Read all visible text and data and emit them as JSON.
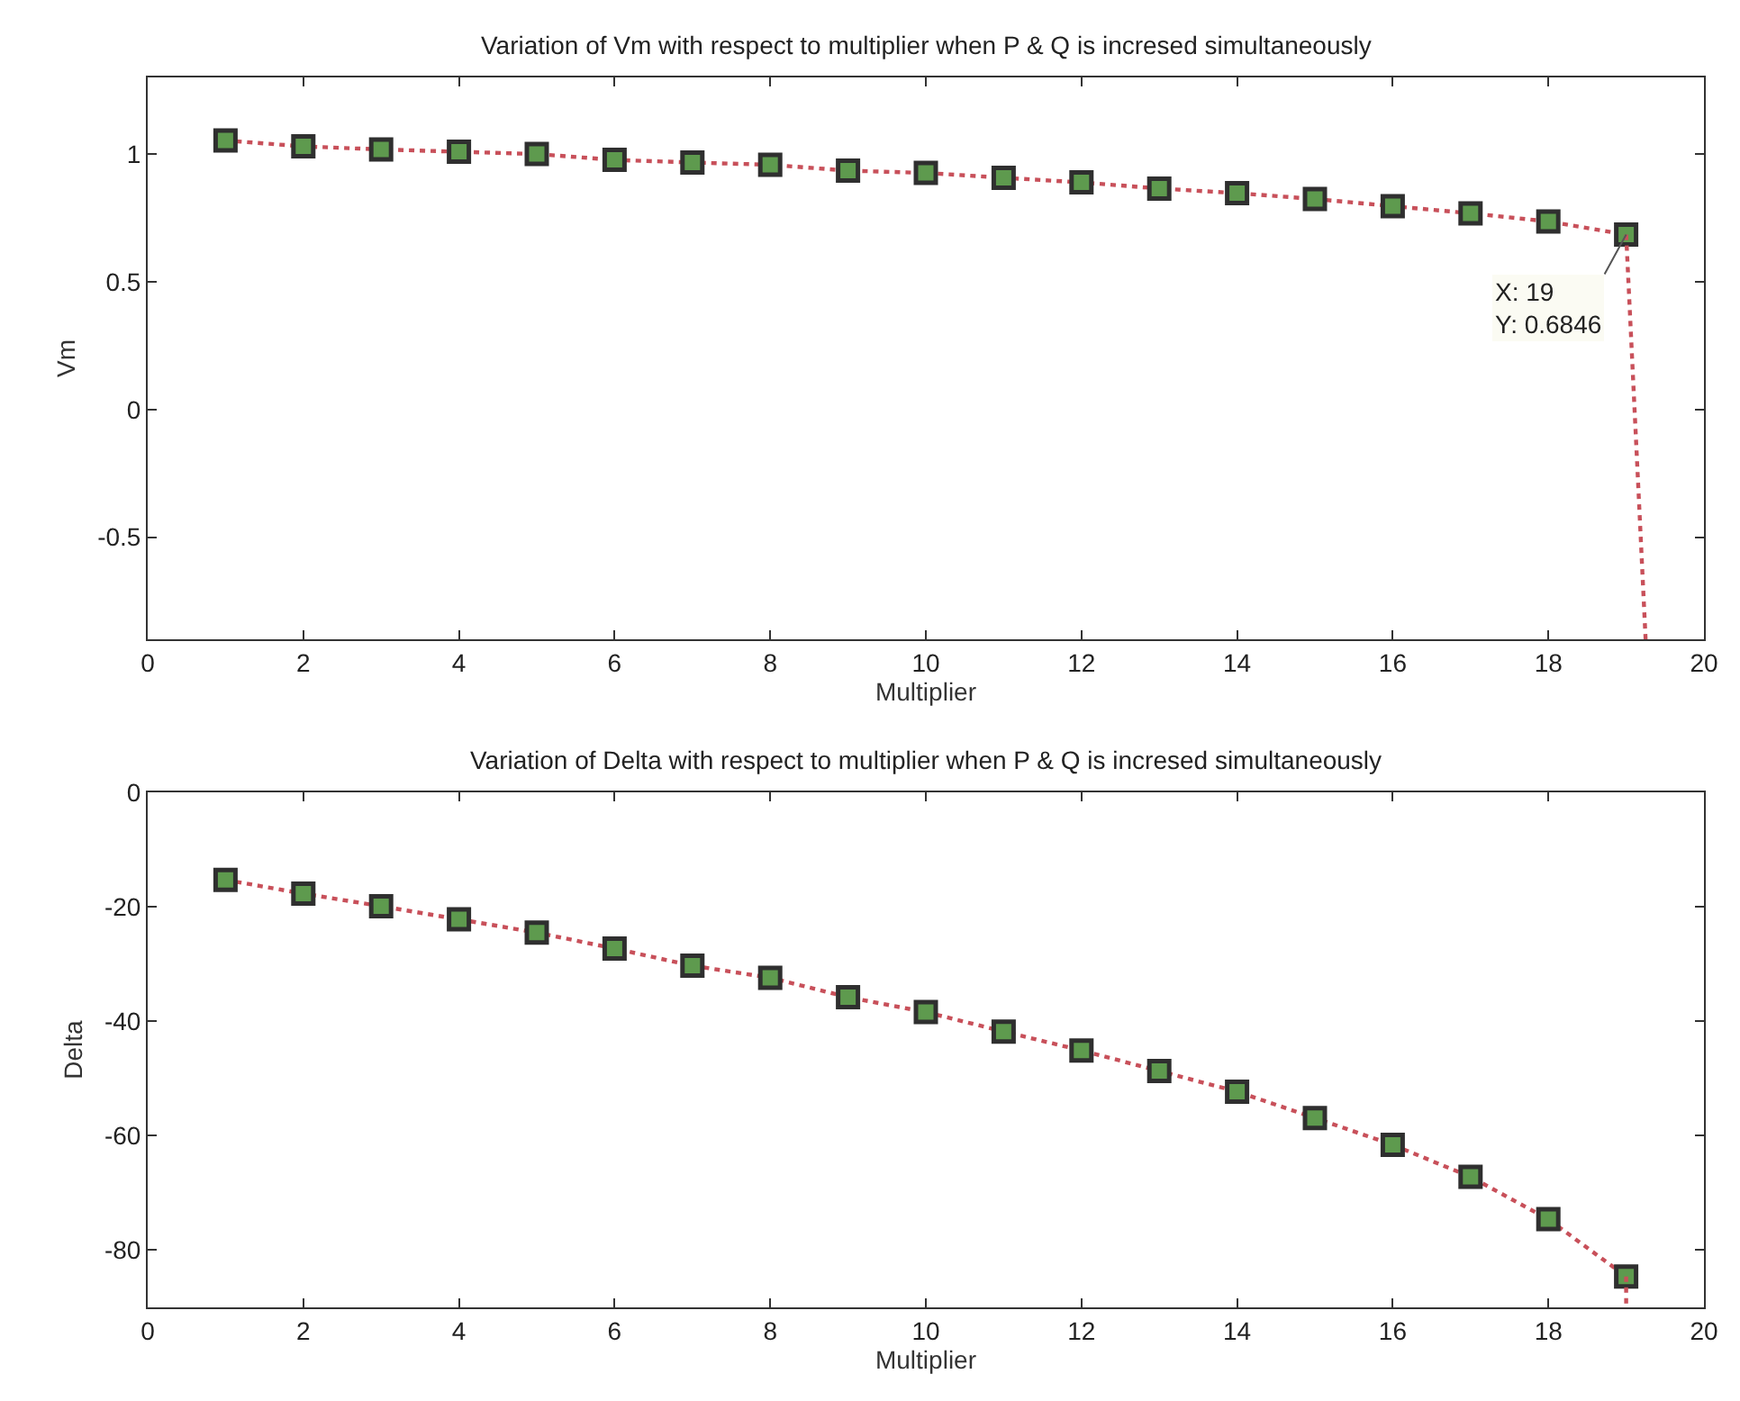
{
  "chart_data": [
    {
      "type": "line",
      "title": "Variation of Vm with respect to multiplier when P & Q is incresed simultaneously",
      "xlabel": "Multiplier",
      "ylabel": "Vm",
      "xlim": [
        0,
        20
      ],
      "xticks": [
        0,
        2,
        4,
        6,
        8,
        10,
        12,
        14,
        16,
        18,
        20
      ],
      "ylim": [
        -0.9,
        1.3
      ],
      "yticks": [
        -0.5,
        0,
        0.5,
        1
      ],
      "line_style": "dotted",
      "series": [
        {
          "color": "#c8505a",
          "marker": "square",
          "x": [
            1,
            2,
            3,
            4,
            5,
            6,
            7,
            8,
            9,
            10,
            11,
            12,
            13,
            14,
            15,
            16,
            17,
            18,
            19
          ],
          "values": [
            1.053,
            1.03,
            1.018,
            1.009,
            1.0,
            0.977,
            0.967,
            0.958,
            0.935,
            0.926,
            0.907,
            0.889,
            0.865,
            0.847,
            0.824,
            0.796,
            0.768,
            0.736,
            0.6846
          ]
        },
        {
          "color": "#c8505a",
          "marker": "none",
          "x": [
            19,
            19.25
          ],
          "values": [
            0.6846,
            -0.9
          ]
        }
      ],
      "annotations": [
        {
          "text": "X: 19\nY: 0.6846",
          "x": 19,
          "y": 0.6846
        }
      ]
    },
    {
      "type": "line",
      "title": "Variation of Delta with respect to multiplier when P & Q is incresed simultaneously",
      "xlabel": "Multiplier",
      "ylabel": "Delta",
      "xlim": [
        0,
        20
      ],
      "xticks": [
        0,
        2,
        4,
        6,
        8,
        10,
        12,
        14,
        16,
        18,
        20
      ],
      "ylim": [
        -90,
        0
      ],
      "yticks": [
        -80,
        -60,
        -40,
        -20,
        0
      ],
      "line_style": "dotted",
      "series": [
        {
          "color": "#c8505a",
          "marker": "square",
          "x": [
            1,
            2,
            3,
            4,
            5,
            6,
            7,
            8,
            9,
            10,
            11,
            12,
            13,
            14,
            15,
            16,
            17,
            18,
            19
          ],
          "values": [
            -15.3,
            -17.7,
            -19.9,
            -22.2,
            -24.5,
            -27.3,
            -30.3,
            -32.4,
            -35.8,
            -38.4,
            -41.8,
            -45.1,
            -48.7,
            -52.3,
            -56.9,
            -61.6,
            -67.2,
            -74.6,
            -84.6
          ]
        },
        {
          "color": "#c8505a",
          "marker": "none",
          "x": [
            19,
            19
          ],
          "values": [
            -84.6,
            -90
          ]
        }
      ]
    }
  ]
}
